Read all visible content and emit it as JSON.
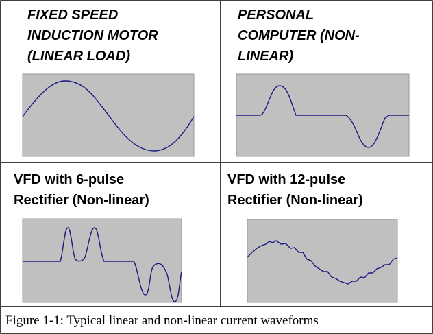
{
  "panels": [
    {
      "title_lines": [
        "FIXED SPEED",
        "INDUCTION MOTOR",
        "(LINEAR LOAD)"
      ]
    },
    {
      "title_lines": [
        "PERSONAL",
        "COMPUTER (NON-",
        "LINEAR)"
      ]
    },
    {
      "title_lines": [
        "VFD with 6-pulse",
        "Rectifier (Non-linear)"
      ]
    },
    {
      "title_lines": [
        "VFD with 12-pulse",
        "Rectifier (Non-linear)"
      ]
    }
  ],
  "caption": "Figure 1-1:  Typical linear and non-linear current waveforms"
}
